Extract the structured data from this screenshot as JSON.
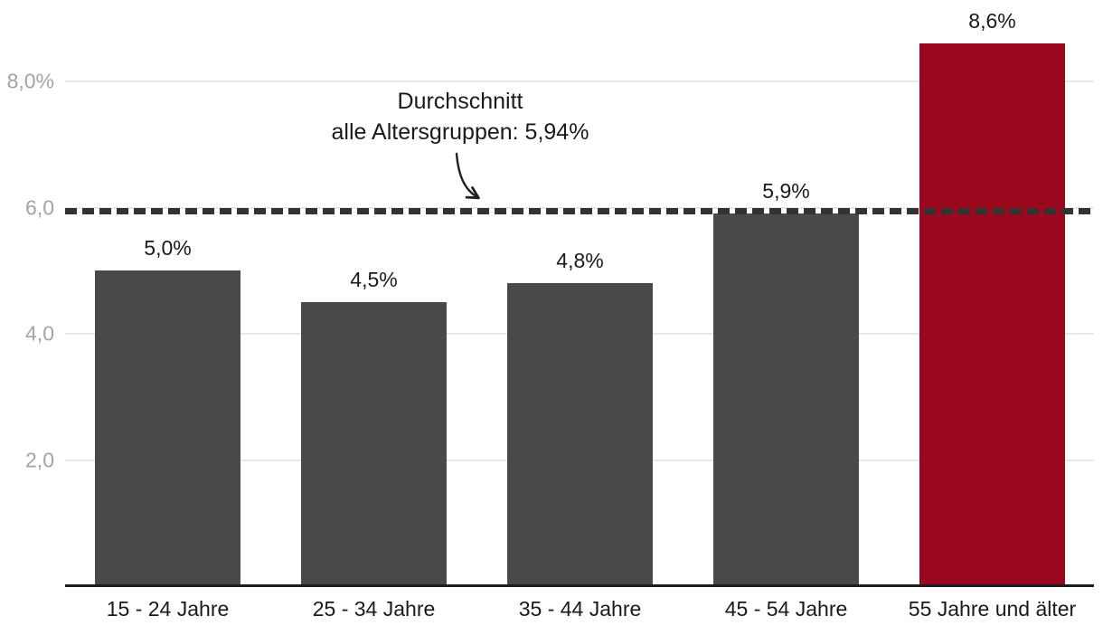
{
  "chart_data": {
    "type": "bar",
    "title": "",
    "xlabel": "",
    "ylabel": "",
    "categories": [
      "15 - 24 Jahre",
      "25 - 34 Jahre",
      "35 - 44 Jahre",
      "45 - 54 Jahre",
      "55 Jahre und älter"
    ],
    "values": [
      5.0,
      4.5,
      4.8,
      5.9,
      8.6
    ],
    "value_labels": [
      "5,0%",
      "4,5%",
      "4,8%",
      "5,9%",
      "8,6%"
    ],
    "bar_colors": [
      "#494949",
      "#494949",
      "#494949",
      "#494949",
      "#99081c"
    ],
    "ylim": [
      0,
      8.8
    ],
    "grid": true,
    "yticks": [
      {
        "value": 8,
        "label": "8,0%"
      },
      {
        "value": 6,
        "label": "6,0"
      },
      {
        "value": 4,
        "label": "4,0"
      },
      {
        "value": 2,
        "label": "2,0"
      }
    ],
    "reference_line": {
      "value": 5.94,
      "style": "dashed",
      "color": "#333333"
    },
    "annotation": {
      "line1": "Durchschnitt",
      "line2": "alle Altersgruppen: 5,94%"
    },
    "colors": {
      "bar_default": "#494949",
      "bar_highlight": "#99081c",
      "gridline": "#e8e8e8",
      "axis_line": "#1f1f1f",
      "y_tick_text": "#a3a3a3",
      "x_tick_text": "#1a1a1a",
      "reference_line": "#333333",
      "annotation_text": "#1a1a1a"
    }
  }
}
